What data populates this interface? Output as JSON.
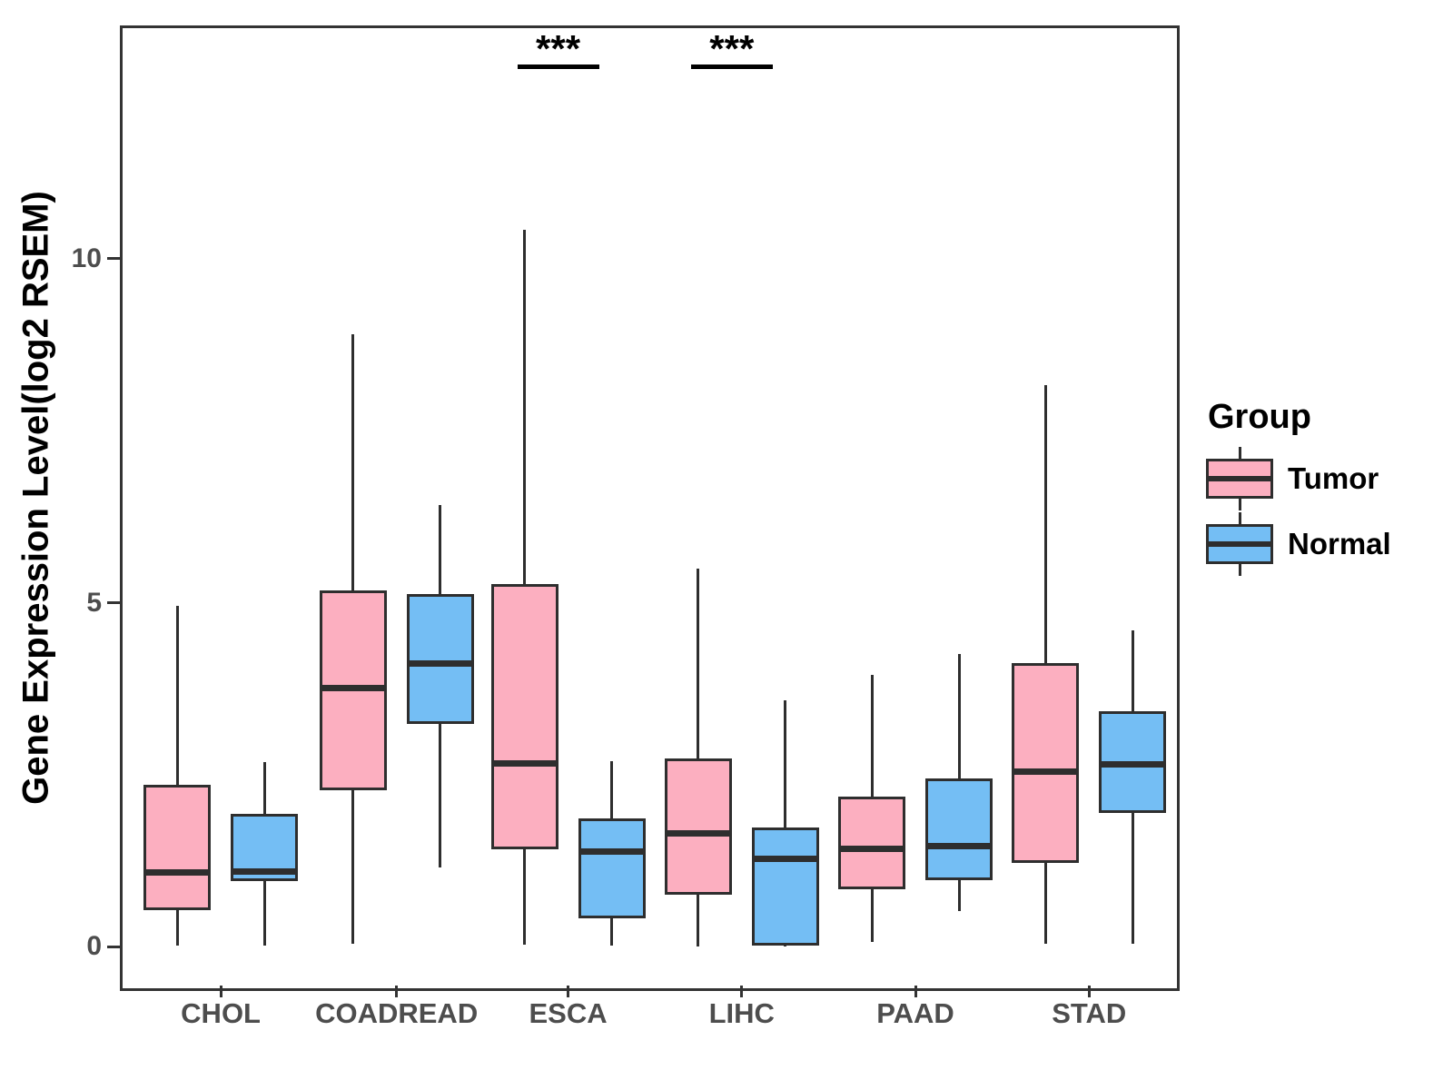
{
  "legend": {
    "title": "Group",
    "items": [
      {
        "label": "Tumor",
        "color": "#FCAFC0"
      },
      {
        "label": "Normal",
        "color": "#74BEF4"
      }
    ]
  },
  "chart_data": {
    "type": "boxplot",
    "title": "",
    "xlabel": "",
    "ylabel": "Gene Expression Level(log2 RSEM)",
    "ylim": [
      -0.55,
      13.38
    ],
    "yticks": [
      0,
      5,
      10
    ],
    "grid": false,
    "legend_position": "right",
    "categories": [
      "CHOL",
      "COADREAD",
      "ESCA",
      "LIHC",
      "PAAD",
      "STAD"
    ],
    "series": [
      {
        "name": "Tumor",
        "color": "#FCAFC0",
        "boxes": [
          {
            "category": "CHOL",
            "low": 0.02,
            "q1": 0.53,
            "median": 1.08,
            "q3": 2.35,
            "high": 4.96
          },
          {
            "category": "COADREAD",
            "low": 0.05,
            "q1": 2.28,
            "median": 3.76,
            "q3": 5.18,
            "high": 8.9
          },
          {
            "category": "ESCA",
            "low": 0.03,
            "q1": 1.42,
            "median": 2.66,
            "q3": 5.27,
            "high": 10.42
          },
          {
            "category": "LIHC",
            "low": 0.0,
            "q1": 0.76,
            "median": 1.65,
            "q3": 2.74,
            "high": 5.5
          },
          {
            "category": "PAAD",
            "low": 0.07,
            "q1": 0.84,
            "median": 1.42,
            "q3": 2.18,
            "high": 3.95
          },
          {
            "category": "STAD",
            "low": 0.05,
            "q1": 1.22,
            "median": 2.55,
            "q3": 4.12,
            "high": 8.16
          }
        ]
      },
      {
        "name": "Normal",
        "color": "#74BEF4",
        "boxes": [
          {
            "category": "CHOL",
            "low": 0.02,
            "q1": 0.95,
            "median": 1.1,
            "q3": 1.93,
            "high": 2.68
          },
          {
            "category": "COADREAD",
            "low": 1.15,
            "q1": 3.24,
            "median": 4.12,
            "q3": 5.13,
            "high": 6.42
          },
          {
            "category": "ESCA",
            "low": 0.02,
            "q1": 0.42,
            "median": 1.38,
            "q3": 1.87,
            "high": 2.7
          },
          {
            "category": "LIHC",
            "low": 0.0,
            "q1": 0.02,
            "median": 1.28,
            "q3": 1.74,
            "high": 3.58
          },
          {
            "category": "PAAD",
            "low": 0.52,
            "q1": 0.97,
            "median": 1.47,
            "q3": 2.45,
            "high": 4.25
          },
          {
            "category": "STAD",
            "low": 0.05,
            "q1": 1.95,
            "median": 2.65,
            "q3": 3.43,
            "high": 4.6
          }
        ]
      }
    ],
    "annotations": [
      {
        "category": "ESCA",
        "label": "***"
      },
      {
        "category": "LIHC",
        "label": "***"
      }
    ]
  }
}
